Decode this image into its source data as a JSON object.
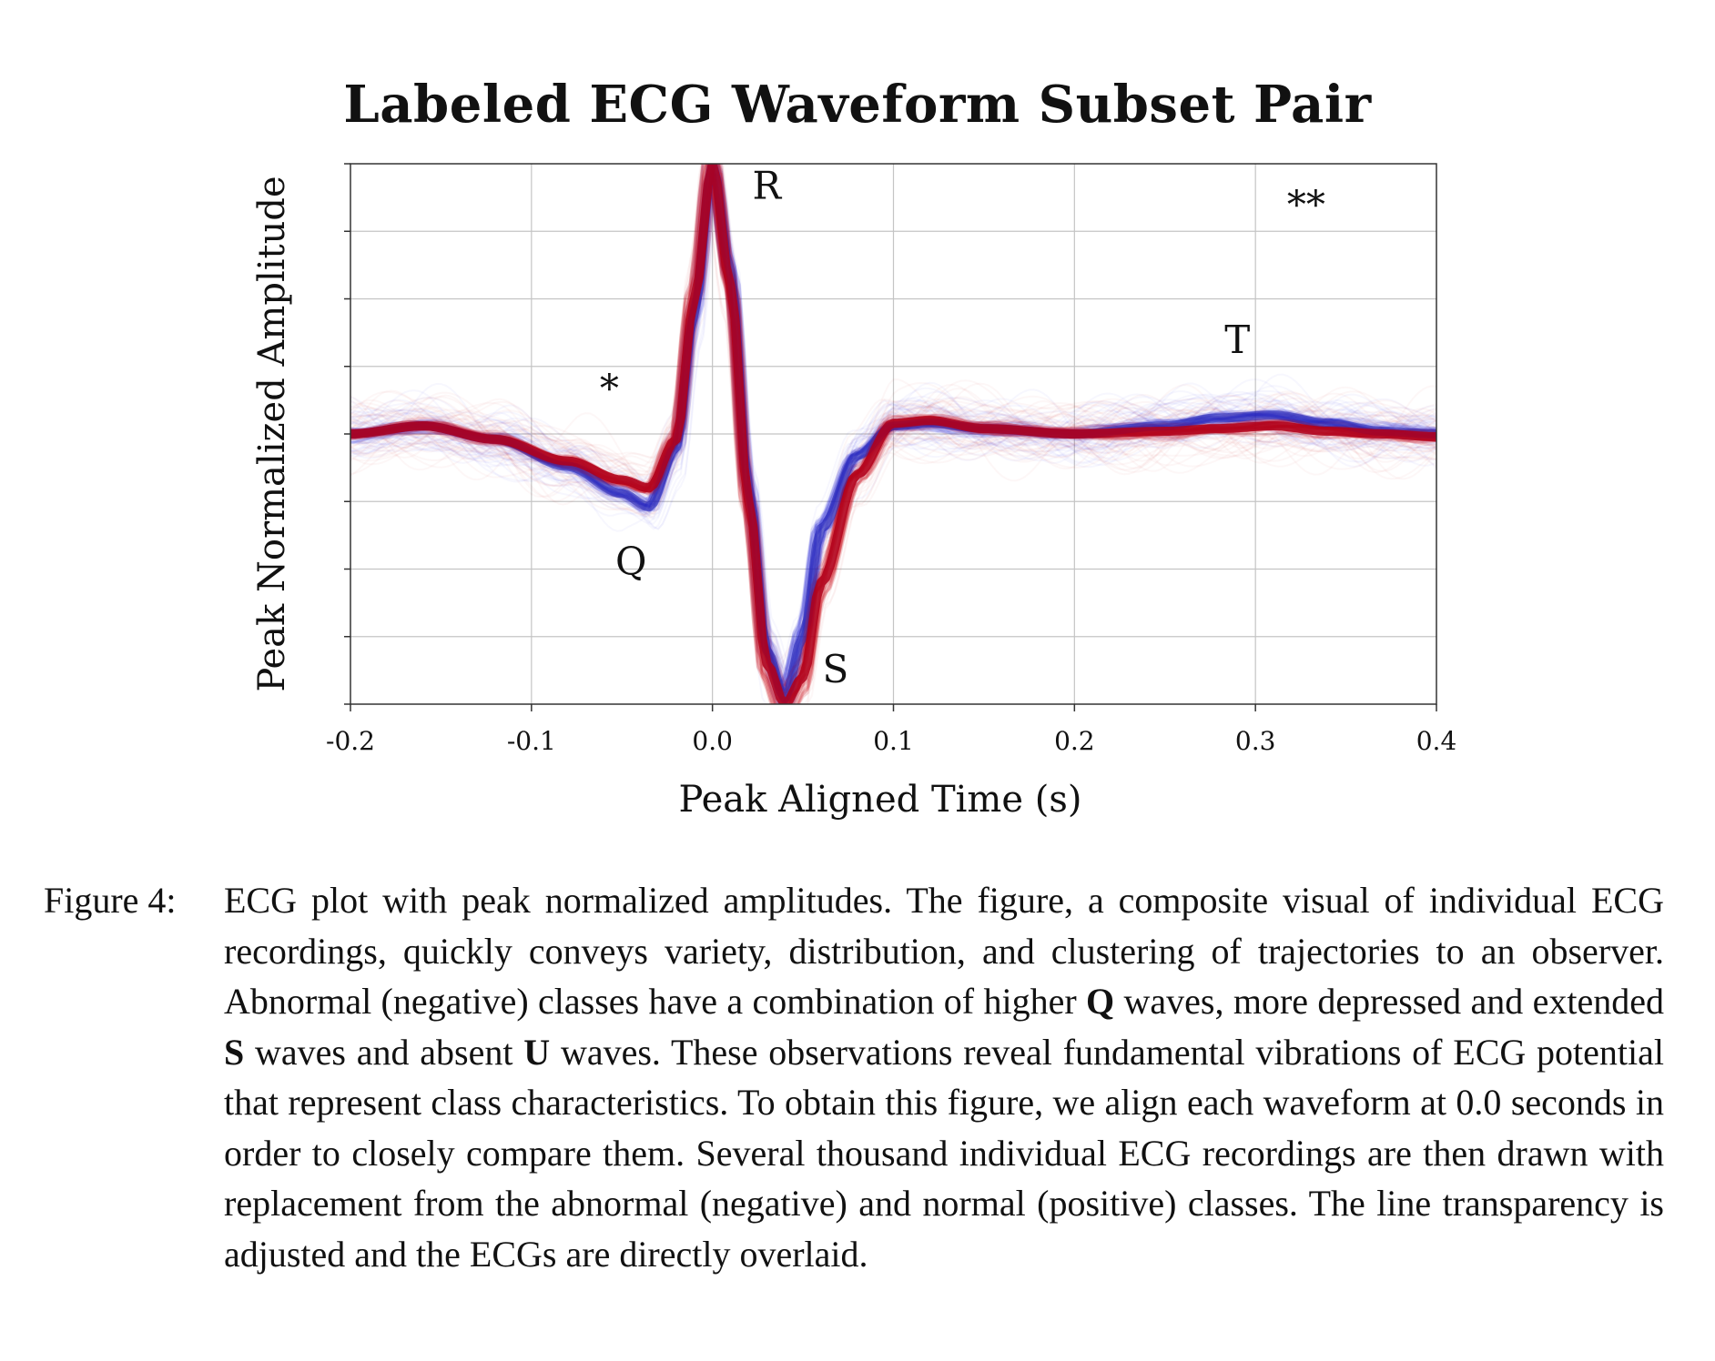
{
  "chart_data": {
    "type": "line",
    "title": "Labeled ECG Waveform Subset Pair",
    "xlabel": "Peak Aligned Time (s)",
    "ylabel": "Peak Normalized Amplitude",
    "xlim": [
      -0.2,
      0.4
    ],
    "ylim": [
      -1.0,
      1.0
    ],
    "x_ticks": [
      "-0.2",
      "-0.1",
      "0.0",
      "0.1",
      "0.2",
      "0.3",
      "0.4"
    ],
    "y_ticks_labeled": false,
    "grid": true,
    "series": [
      {
        "color": "#2a2ad6",
        "x": [
          -0.2,
          -0.16,
          -0.12,
          -0.08,
          -0.05,
          -0.035,
          -0.02,
          -0.01,
          0.0,
          0.01,
          0.02,
          0.03,
          0.04,
          0.05,
          0.06,
          0.08,
          0.1,
          0.12,
          0.15,
          0.2,
          0.25,
          0.28,
          0.31,
          0.34,
          0.37,
          0.4
        ],
        "y": [
          0.0,
          0.03,
          -0.02,
          -0.12,
          -0.22,
          -0.27,
          -0.05,
          0.45,
          1.0,
          0.6,
          -0.2,
          -0.8,
          -0.98,
          -0.75,
          -0.35,
          -0.08,
          0.03,
          0.04,
          0.02,
          0.0,
          0.03,
          0.06,
          0.07,
          0.04,
          0.01,
          0.0
        ]
      },
      {
        "color": "#d01020",
        "x": [
          -0.2,
          -0.16,
          -0.12,
          -0.08,
          -0.05,
          -0.035,
          -0.02,
          -0.01,
          0.0,
          0.01,
          0.02,
          0.03,
          0.04,
          0.05,
          0.06,
          0.08,
          0.1,
          0.12,
          0.15,
          0.2,
          0.25,
          0.28,
          0.31,
          0.34,
          0.37,
          0.4
        ],
        "y": [
          0.0,
          0.03,
          -0.02,
          -0.1,
          -0.17,
          -0.2,
          -0.02,
          0.5,
          1.0,
          0.55,
          -0.25,
          -0.85,
          -1.0,
          -0.9,
          -0.55,
          -0.15,
          0.04,
          0.05,
          0.02,
          0.0,
          0.01,
          0.02,
          0.03,
          0.01,
          0.0,
          -0.01
        ]
      }
    ],
    "annotations": [
      {
        "text": "R",
        "x": 0.03,
        "y": 0.87
      },
      {
        "text": "Q",
        "x": -0.045,
        "y": -0.52
      },
      {
        "text": "S",
        "x": 0.068,
        "y": -0.92
      },
      {
        "text": "T",
        "x": 0.29,
        "y": 0.3
      },
      {
        "text": "*",
        "x": -0.057,
        "y": 0.12
      },
      {
        "text": "**",
        "x": 0.328,
        "y": 0.8
      }
    ]
  },
  "caption": {
    "label": "Figure 4:",
    "parts": [
      "ECG plot with peak normalized amplitudes. The figure, a composite visual of individual ECG recordings, quickly conveys variety, distribution, and clustering of trajectories to an observer. Abnormal (negative) classes have a combination of higher ",
      "Q",
      " waves, more depressed and extended ",
      "S",
      " waves and absent ",
      "U",
      " waves. These observations reveal fundamental vibrations of ECG potential that represent class characteristics. To obtain this figure, we align each waveform at 0.0 seconds in order to closely compare them. Several thousand individual ECG recordings are then drawn with replacement from the abnormal (negative) and normal (positive) classes. The line transparency is adjusted and the ECGs are directly overlaid."
    ]
  }
}
